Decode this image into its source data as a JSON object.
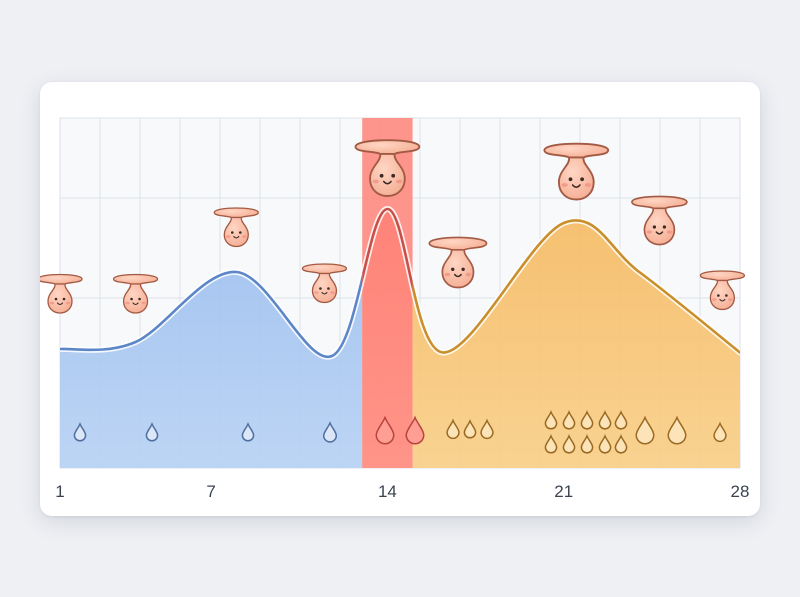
{
  "chart_data": {
    "type": "area",
    "title": "",
    "xlabel": "",
    "ylabel": "",
    "xlim": [
      1,
      28
    ],
    "ylim": [
      0,
      10
    ],
    "x_tick_labels": [
      "1",
      "7",
      "14",
      "21",
      "28"
    ],
    "x_ticks": [
      1,
      7,
      14,
      21,
      28
    ],
    "grid": true,
    "phases": [
      {
        "start": 1,
        "end": 13,
        "color": "#9fc2ef",
        "stroke": "#5d86c8",
        "droplets": [
          1,
          1,
          1,
          1
        ]
      },
      {
        "start": 13,
        "end": 15,
        "color": "#ff8478",
        "stroke": "#c9504a",
        "droplets": [
          2
        ]
      },
      {
        "start": 15,
        "end": 28,
        "color": "#f7c06a",
        "stroke": "#c98f2c",
        "droplets": [
          3,
          10,
          2,
          1
        ]
      }
    ],
    "curve": {
      "x": [
        1,
        4,
        8,
        11.8,
        14,
        16.2,
        21,
        24,
        28
      ],
      "y": [
        3.4,
        3.6,
        5.6,
        3.2,
        7.4,
        3.3,
        7.0,
        5.6,
        3.3
      ]
    },
    "markers": [
      {
        "x": 1,
        "y": 5.0,
        "size": 1.0
      },
      {
        "x": 4,
        "y": 5.0,
        "size": 1.0
      },
      {
        "x": 8,
        "y": 6.9,
        "size": 1.0
      },
      {
        "x": 11.5,
        "y": 5.3,
        "size": 1.0
      },
      {
        "x": 14,
        "y": 8.6,
        "size": 1.45
      },
      {
        "x": 16.8,
        "y": 5.9,
        "size": 1.3
      },
      {
        "x": 21.5,
        "y": 8.5,
        "size": 1.45
      },
      {
        "x": 24.8,
        "y": 7.1,
        "size": 1.25
      },
      {
        "x": 27.3,
        "y": 5.1,
        "size": 1.0
      }
    ]
  }
}
